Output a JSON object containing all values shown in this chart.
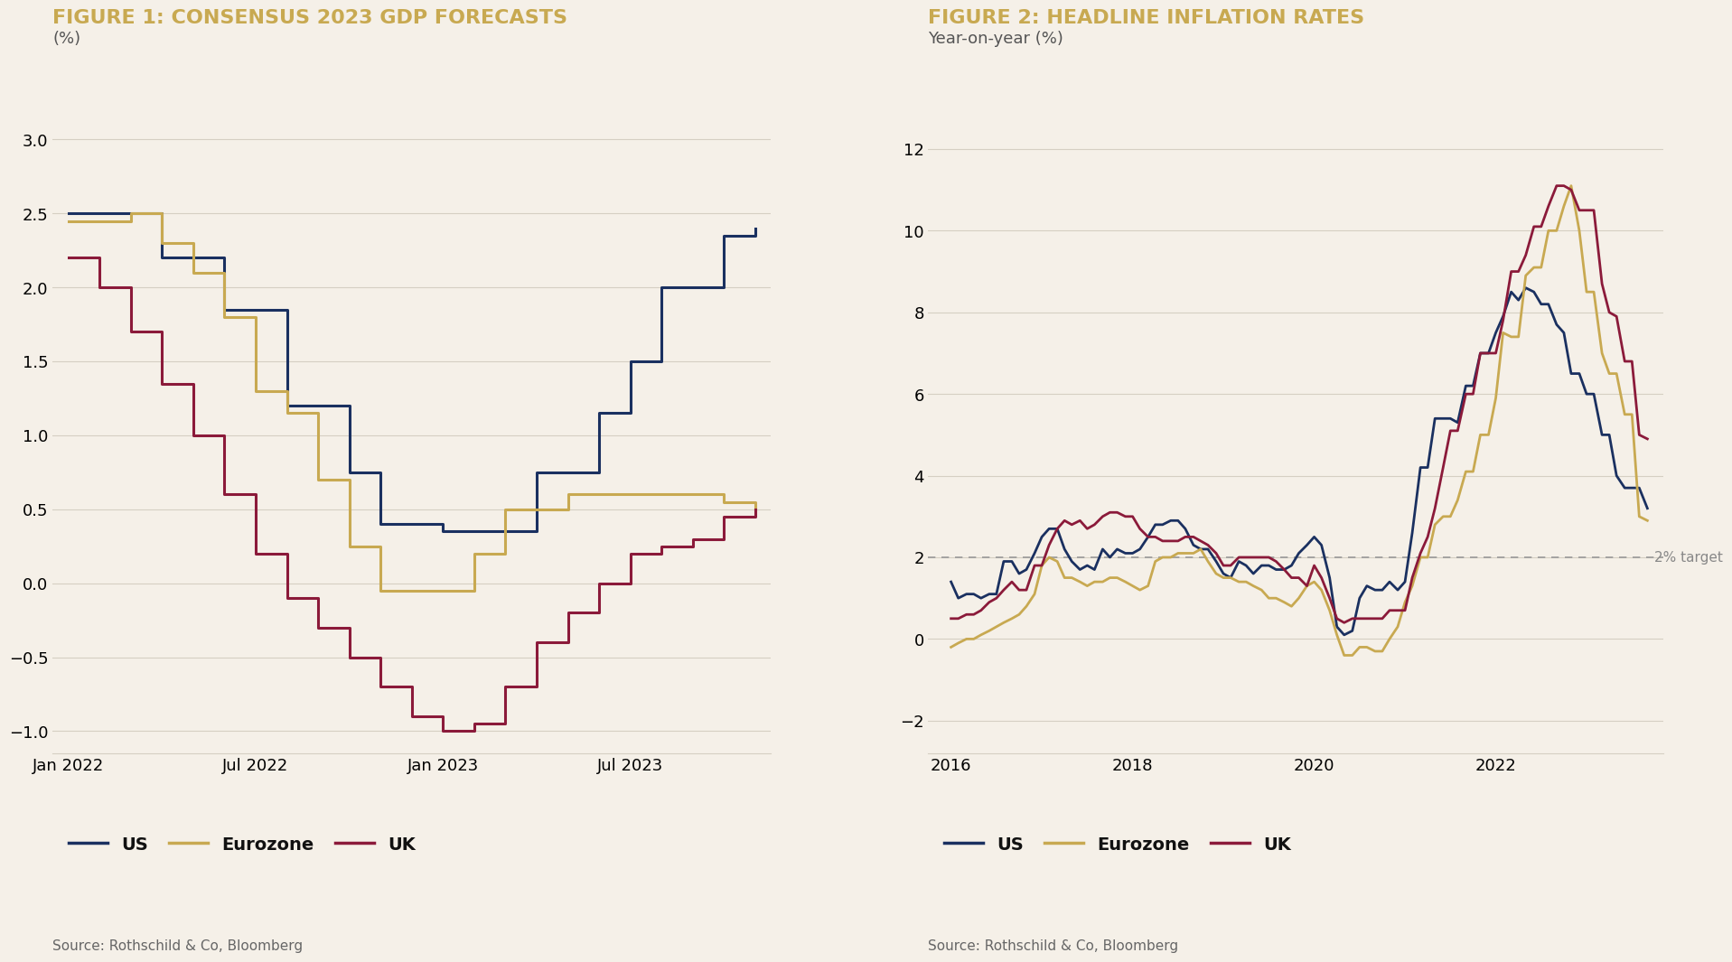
{
  "fig1_title": "FIGURE 1: CONSENSUS 2023 GDP FORECASTS",
  "fig1_ylabel": "(%)",
  "fig1_source": "Source: Rothschild & Co, Bloomberg",
  "fig2_title": "FIGURE 2: HEADLINE INFLATION RATES",
  "fig2_ylabel": "Year-on-year (%)",
  "fig2_source": "Source: Rothschild & Co, Bloomberg",
  "fig2_target_label": "2% target",
  "background_color": "#f5f0e8",
  "color_us": "#1a3060",
  "color_ez": "#c8a951",
  "color_uk": "#8b1a3a",
  "color_grid": "#d5cfc3",
  "color_title": "#c8a951",
  "fig1_ylim": [
    -1.15,
    3.35
  ],
  "fig1_yticks": [
    -1.0,
    -0.5,
    0.0,
    0.5,
    1.0,
    1.5,
    2.0,
    2.5,
    3.0
  ],
  "fig2_ylim": [
    -2.8,
    13.5
  ],
  "fig2_yticks": [
    -2,
    0,
    2,
    4,
    6,
    8,
    10,
    12
  ],
  "fig1_us_x": [
    0,
    1,
    2,
    3,
    4,
    5,
    6,
    7,
    8,
    9,
    10,
    11,
    12,
    13,
    14,
    15,
    16,
    17,
    18,
    19,
    20,
    21,
    22
  ],
  "fig1_us_y": [
    2.5,
    2.5,
    2.5,
    2.2,
    2.2,
    1.85,
    1.85,
    1.2,
    1.2,
    0.75,
    0.4,
    0.4,
    0.35,
    0.35,
    0.35,
    0.75,
    0.75,
    1.15,
    1.5,
    2.0,
    2.0,
    2.35,
    2.4
  ],
  "fig1_ez_x": [
    0,
    1,
    2,
    3,
    4,
    5,
    6,
    7,
    8,
    9,
    10,
    11,
    12,
    13,
    14,
    15,
    16,
    17,
    18,
    19,
    20,
    21,
    22
  ],
  "fig1_ez_y": [
    2.45,
    2.45,
    2.5,
    2.3,
    2.1,
    1.8,
    1.3,
    1.15,
    0.7,
    0.25,
    -0.05,
    -0.05,
    -0.05,
    0.2,
    0.5,
    0.5,
    0.6,
    0.6,
    0.6,
    0.6,
    0.6,
    0.55,
    0.5
  ],
  "fig1_uk_x": [
    0,
    1,
    2,
    3,
    4,
    5,
    6,
    7,
    8,
    9,
    10,
    11,
    12,
    13,
    14,
    15,
    16,
    17,
    18,
    19,
    20,
    21,
    22
  ],
  "fig1_uk_y": [
    2.2,
    2.0,
    1.7,
    1.35,
    1.0,
    0.6,
    0.2,
    -0.1,
    -0.3,
    -0.5,
    -0.7,
    -0.9,
    -1.0,
    -0.95,
    -0.7,
    -0.4,
    -0.2,
    0.0,
    0.2,
    0.25,
    0.3,
    0.45,
    0.5
  ],
  "fig1_xtick_vals": [
    0,
    6,
    12,
    18
  ],
  "fig1_xtick_labels": [
    "Jan 2022",
    "Jul 2022",
    "Jan 2023",
    "Jul 2023"
  ],
  "fig2_us_x": [
    2016.0,
    2016.08,
    2016.17,
    2016.25,
    2016.33,
    2016.42,
    2016.5,
    2016.58,
    2016.67,
    2016.75,
    2016.83,
    2016.92,
    2017.0,
    2017.08,
    2017.17,
    2017.25,
    2017.33,
    2017.42,
    2017.5,
    2017.58,
    2017.67,
    2017.75,
    2017.83,
    2017.92,
    2018.0,
    2018.08,
    2018.17,
    2018.25,
    2018.33,
    2018.42,
    2018.5,
    2018.58,
    2018.67,
    2018.75,
    2018.83,
    2018.92,
    2019.0,
    2019.08,
    2019.17,
    2019.25,
    2019.33,
    2019.42,
    2019.5,
    2019.58,
    2019.67,
    2019.75,
    2019.83,
    2019.92,
    2020.0,
    2020.08,
    2020.17,
    2020.25,
    2020.33,
    2020.42,
    2020.5,
    2020.58,
    2020.67,
    2020.75,
    2020.83,
    2020.92,
    2021.0,
    2021.08,
    2021.17,
    2021.25,
    2021.33,
    2021.42,
    2021.5,
    2021.58,
    2021.67,
    2021.75,
    2021.83,
    2021.92,
    2022.0,
    2022.08,
    2022.17,
    2022.25,
    2022.33,
    2022.42,
    2022.5,
    2022.58,
    2022.67,
    2022.75,
    2022.83,
    2022.92,
    2023.0,
    2023.08,
    2023.17,
    2023.25,
    2023.33,
    2023.42,
    2023.5,
    2023.58,
    2023.67
  ],
  "fig2_us_y": [
    1.4,
    1.0,
    1.1,
    1.1,
    1.0,
    1.1,
    1.1,
    1.9,
    1.9,
    1.6,
    1.7,
    2.1,
    2.5,
    2.7,
    2.7,
    2.2,
    1.9,
    1.7,
    1.8,
    1.7,
    2.2,
    2.0,
    2.2,
    2.1,
    2.1,
    2.2,
    2.5,
    2.8,
    2.8,
    2.9,
    2.9,
    2.7,
    2.3,
    2.2,
    2.2,
    1.9,
    1.6,
    1.5,
    1.9,
    1.8,
    1.6,
    1.8,
    1.8,
    1.7,
    1.7,
    1.8,
    2.1,
    2.3,
    2.5,
    2.3,
    1.5,
    0.3,
    0.1,
    0.2,
    1.0,
    1.3,
    1.2,
    1.2,
    1.4,
    1.2,
    1.4,
    2.6,
    4.2,
    4.2,
    5.4,
    5.4,
    5.4,
    5.3,
    6.2,
    6.2,
    7.0,
    7.0,
    7.5,
    7.9,
    8.5,
    8.3,
    8.6,
    8.5,
    8.2,
    8.2,
    7.7,
    7.5,
    6.5,
    6.5,
    6.0,
    6.0,
    5.0,
    5.0,
    4.0,
    3.7,
    3.7,
    3.7,
    3.2
  ],
  "fig2_ez_x": [
    2016.0,
    2016.08,
    2016.17,
    2016.25,
    2016.33,
    2016.42,
    2016.5,
    2016.58,
    2016.67,
    2016.75,
    2016.83,
    2016.92,
    2017.0,
    2017.08,
    2017.17,
    2017.25,
    2017.33,
    2017.42,
    2017.5,
    2017.58,
    2017.67,
    2017.75,
    2017.83,
    2017.92,
    2018.0,
    2018.08,
    2018.17,
    2018.25,
    2018.33,
    2018.42,
    2018.5,
    2018.58,
    2018.67,
    2018.75,
    2018.83,
    2018.92,
    2019.0,
    2019.08,
    2019.17,
    2019.25,
    2019.33,
    2019.42,
    2019.5,
    2019.58,
    2019.67,
    2019.75,
    2019.83,
    2019.92,
    2020.0,
    2020.08,
    2020.17,
    2020.25,
    2020.33,
    2020.42,
    2020.5,
    2020.58,
    2020.67,
    2020.75,
    2020.83,
    2020.92,
    2021.0,
    2021.08,
    2021.17,
    2021.25,
    2021.33,
    2021.42,
    2021.5,
    2021.58,
    2021.67,
    2021.75,
    2021.83,
    2021.92,
    2022.0,
    2022.08,
    2022.17,
    2022.25,
    2022.33,
    2022.42,
    2022.5,
    2022.58,
    2022.67,
    2022.75,
    2022.83,
    2022.92,
    2023.0,
    2023.08,
    2023.17,
    2023.25,
    2023.33,
    2023.42,
    2023.5,
    2023.58,
    2023.67
  ],
  "fig2_ez_y": [
    -0.2,
    -0.1,
    0.0,
    0.0,
    0.1,
    0.2,
    0.3,
    0.4,
    0.5,
    0.6,
    0.8,
    1.1,
    1.8,
    2.0,
    1.9,
    1.5,
    1.5,
    1.4,
    1.3,
    1.4,
    1.4,
    1.5,
    1.5,
    1.4,
    1.3,
    1.2,
    1.3,
    1.9,
    2.0,
    2.0,
    2.1,
    2.1,
    2.1,
    2.2,
    1.9,
    1.6,
    1.5,
    1.5,
    1.4,
    1.4,
    1.3,
    1.2,
    1.0,
    1.0,
    0.9,
    0.8,
    1.0,
    1.3,
    1.4,
    1.2,
    0.7,
    0.1,
    -0.4,
    -0.4,
    -0.2,
    -0.2,
    -0.3,
    -0.3,
    0.0,
    0.3,
    0.9,
    1.3,
    2.0,
    2.0,
    2.8,
    3.0,
    3.0,
    3.4,
    4.1,
    4.1,
    5.0,
    5.0,
    5.9,
    7.5,
    7.4,
    7.4,
    8.9,
    9.1,
    9.1,
    10.0,
    10.0,
    10.6,
    11.1,
    10.0,
    8.5,
    8.5,
    7.0,
    6.5,
    6.5,
    5.5,
    5.5,
    3.0,
    2.9
  ],
  "fig2_uk_x": [
    2016.0,
    2016.08,
    2016.17,
    2016.25,
    2016.33,
    2016.42,
    2016.5,
    2016.58,
    2016.67,
    2016.75,
    2016.83,
    2016.92,
    2017.0,
    2017.08,
    2017.17,
    2017.25,
    2017.33,
    2017.42,
    2017.5,
    2017.58,
    2017.67,
    2017.75,
    2017.83,
    2017.92,
    2018.0,
    2018.08,
    2018.17,
    2018.25,
    2018.33,
    2018.42,
    2018.5,
    2018.58,
    2018.67,
    2018.75,
    2018.83,
    2018.92,
    2019.0,
    2019.08,
    2019.17,
    2019.25,
    2019.33,
    2019.42,
    2019.5,
    2019.58,
    2019.67,
    2019.75,
    2019.83,
    2019.92,
    2020.0,
    2020.08,
    2020.17,
    2020.25,
    2020.33,
    2020.42,
    2020.5,
    2020.58,
    2020.67,
    2020.75,
    2020.83,
    2020.92,
    2021.0,
    2021.08,
    2021.17,
    2021.25,
    2021.33,
    2021.42,
    2021.5,
    2021.58,
    2021.67,
    2021.75,
    2021.83,
    2021.92,
    2022.0,
    2022.08,
    2022.17,
    2022.25,
    2022.33,
    2022.42,
    2022.5,
    2022.58,
    2022.67,
    2022.75,
    2022.83,
    2022.92,
    2023.0,
    2023.08,
    2023.17,
    2023.25,
    2023.33,
    2023.42,
    2023.5,
    2023.58,
    2023.67
  ],
  "fig2_uk_y": [
    0.5,
    0.5,
    0.6,
    0.6,
    0.7,
    0.9,
    1.0,
    1.2,
    1.4,
    1.2,
    1.2,
    1.8,
    1.8,
    2.3,
    2.7,
    2.9,
    2.8,
    2.9,
    2.7,
    2.8,
    3.0,
    3.1,
    3.1,
    3.0,
    3.0,
    2.7,
    2.5,
    2.5,
    2.4,
    2.4,
    2.4,
    2.5,
    2.5,
    2.4,
    2.3,
    2.1,
    1.8,
    1.8,
    2.0,
    2.0,
    2.0,
    2.0,
    2.0,
    1.9,
    1.7,
    1.5,
    1.5,
    1.3,
    1.8,
    1.5,
    1.0,
    0.5,
    0.4,
    0.5,
    0.5,
    0.5,
    0.5,
    0.5,
    0.7,
    0.7,
    0.7,
    1.5,
    2.1,
    2.5,
    3.2,
    4.2,
    5.1,
    5.1,
    6.0,
    6.0,
    7.0,
    7.0,
    7.0,
    7.8,
    9.0,
    9.0,
    9.4,
    10.1,
    10.1,
    10.6,
    11.1,
    11.1,
    11.0,
    10.5,
    10.5,
    10.5,
    8.7,
    8.0,
    7.9,
    6.8,
    6.8,
    5.0,
    4.9
  ]
}
